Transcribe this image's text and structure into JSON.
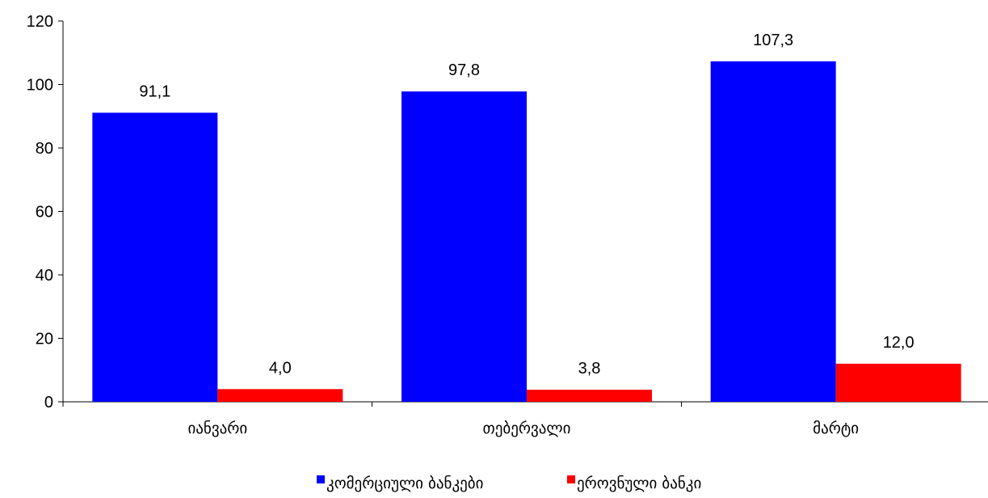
{
  "chart_data": {
    "type": "bar",
    "title": "",
    "xlabel": "",
    "ylabel": "",
    "ylim": [
      0,
      120
    ],
    "yticks": [
      0,
      20,
      40,
      60,
      80,
      100,
      120
    ],
    "ytick_labels": [
      "0",
      "20",
      "40",
      "60",
      "80",
      "100",
      "120"
    ],
    "categories": [
      "იანვარი",
      "თებერვალი",
      "მარტი"
    ],
    "series": [
      {
        "name": "კომერციული ბანკები",
        "color": "#0000ff",
        "values": [
          91.1,
          97.8,
          107.3
        ],
        "labels": [
          "91,1",
          "97,8",
          "107,3"
        ]
      },
      {
        "name": "ეროვნული ბანკი",
        "color": "#ff0000",
        "values": [
          4.0,
          3.8,
          12.0
        ],
        "labels": [
          "4,0",
          "3,8",
          "12,0"
        ]
      }
    ],
    "grid": false,
    "legend_position": "bottom"
  }
}
